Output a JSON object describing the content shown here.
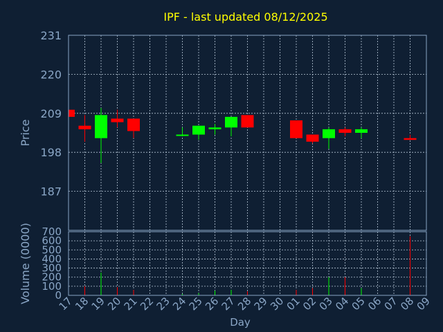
{
  "chart_data": [
    {
      "type": "candlestick",
      "title": "IPF - last updated 08/12/2025",
      "ylabel": "Price",
      "ylim": [
        176,
        231
      ],
      "yticks": [
        187,
        198,
        209,
        220,
        231
      ],
      "candles": [
        {
          "day": "17",
          "open": 210,
          "high": 210,
          "low": 208,
          "close": 208
        },
        {
          "day": "18",
          "open": 205.5,
          "high": 208.5,
          "low": 201,
          "close": 204.5
        },
        {
          "day": "19",
          "open": 202,
          "high": 210.5,
          "low": 195,
          "close": 208.5
        },
        {
          "day": "20",
          "open": 207.5,
          "high": 210,
          "low": 205,
          "close": 206.5
        },
        {
          "day": "21",
          "open": 207.5,
          "high": 207.5,
          "low": 202,
          "close": 204
        },
        {
          "day": "24",
          "open": 203,
          "high": 205,
          "low": 202.5,
          "close": 203
        },
        {
          "day": "25",
          "open": 203,
          "high": 205.5,
          "low": 201.5,
          "close": 205.5
        },
        {
          "day": "26",
          "open": 204.5,
          "high": 206,
          "low": 203,
          "close": 205
        },
        {
          "day": "27",
          "open": 205,
          "high": 208,
          "low": 202.5,
          "close": 208
        },
        {
          "day": "28",
          "open": 208.5,
          "high": 208.5,
          "low": 205,
          "close": 205
        },
        {
          "day": "01",
          "open": 207,
          "high": 207,
          "low": 202,
          "close": 202
        },
        {
          "day": "02",
          "open": 203,
          "high": 203,
          "low": 200.5,
          "close": 201
        },
        {
          "day": "03",
          "open": 202,
          "high": 205,
          "low": 199,
          "close": 204.5
        },
        {
          "day": "04",
          "open": 204.5,
          "high": 205,
          "low": 202.5,
          "close": 203.5
        },
        {
          "day": "05",
          "open": 203.5,
          "high": 205,
          "low": 202,
          "close": 204.5
        },
        {
          "day": "08",
          "open": 202,
          "high": 203,
          "low": 201.5,
          "close": 201.5
        }
      ]
    },
    {
      "type": "bar",
      "ylabel": "Volume (0000)",
      "xlabel": "Day",
      "ylim": [
        0,
        700
      ],
      "yticks": [
        0,
        100,
        200,
        300,
        400,
        500,
        600,
        700
      ],
      "categories": [
        "17",
        "18",
        "19",
        "20",
        "21",
        "22",
        "23",
        "24",
        "25",
        "26",
        "27",
        "28",
        "29",
        "30",
        "01",
        "02",
        "03",
        "04",
        "05",
        "06",
        "07",
        "08",
        "09"
      ],
      "bars": [
        {
          "day": "18",
          "value": 100,
          "color": "#ff0000"
        },
        {
          "day": "19",
          "value": 250,
          "color": "#00ff00"
        },
        {
          "day": "20",
          "value": 90,
          "color": "#ff0000"
        },
        {
          "day": "21",
          "value": 60,
          "color": "#ff0000"
        },
        {
          "day": "24",
          "value": 15,
          "color": "#00ff00"
        },
        {
          "day": "25",
          "value": 25,
          "color": "#00ff00"
        },
        {
          "day": "26",
          "value": 50,
          "color": "#00ff00"
        },
        {
          "day": "27",
          "value": 60,
          "color": "#00ff00"
        },
        {
          "day": "28",
          "value": 45,
          "color": "#ff0000"
        },
        {
          "day": "01",
          "value": 60,
          "color": "#ff0000"
        },
        {
          "day": "02",
          "value": 80,
          "color": "#ff0000"
        },
        {
          "day": "03",
          "value": 200,
          "color": "#00ff00"
        },
        {
          "day": "04",
          "value": 200,
          "color": "#ff0000"
        },
        {
          "day": "05",
          "value": 80,
          "color": "#00ff00"
        },
        {
          "day": "08",
          "value": 650,
          "color": "#ff0000"
        }
      ]
    }
  ],
  "colors": {
    "background": "#0f1f33",
    "axis": "#8aa6c6",
    "grid": "#b8c8d8",
    "title": "#ffff00",
    "up": "#00ff00",
    "down": "#ff0000"
  }
}
